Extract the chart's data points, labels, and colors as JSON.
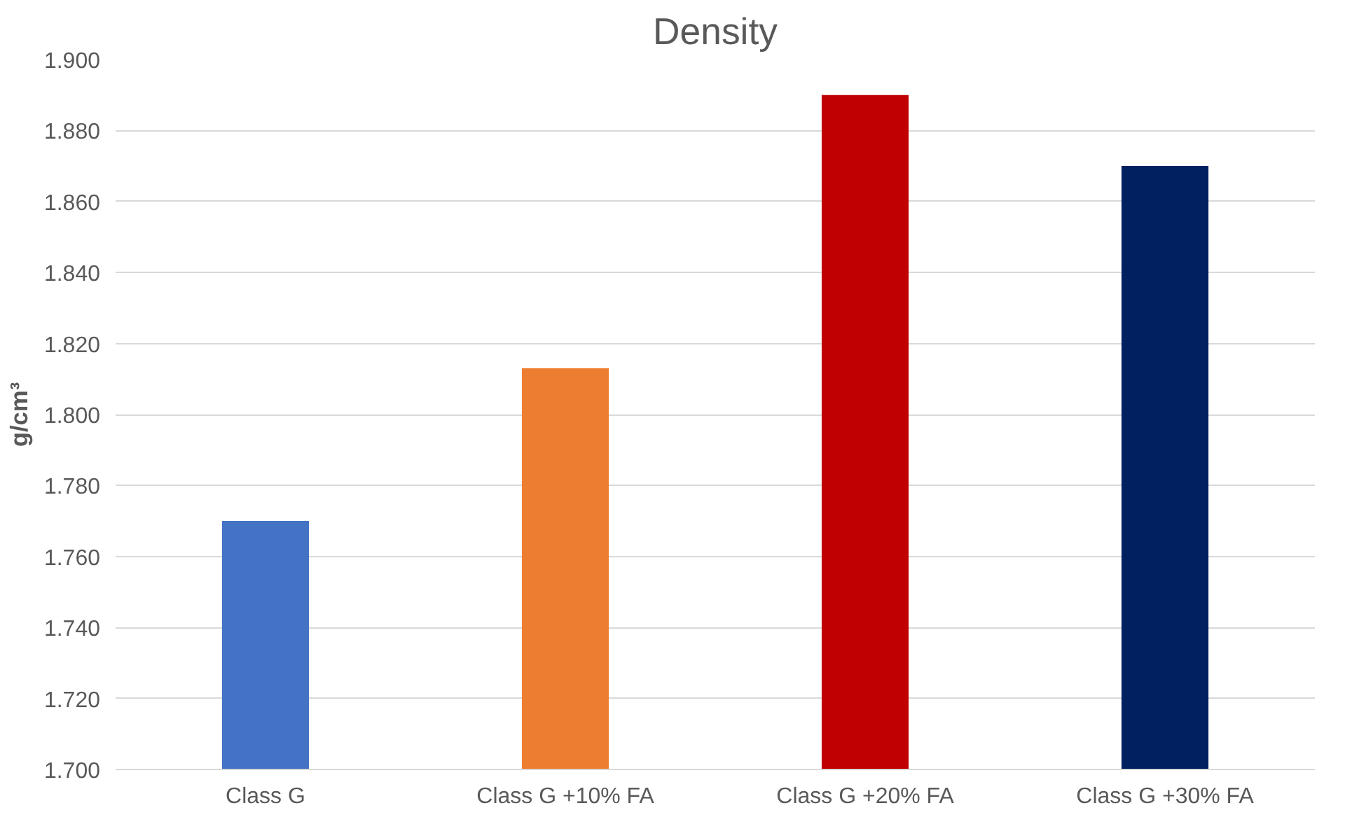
{
  "chart_data": {
    "type": "bar",
    "title": "Density",
    "ylabel": "g/cm³",
    "categories": [
      "Class G",
      "Class G +10% FA",
      "Class G +20% FA",
      "Class G +30% FA"
    ],
    "values": [
      1.77,
      1.813,
      1.89,
      1.87
    ],
    "colors": [
      "#4472c4",
      "#ed7d31",
      "#c00000",
      "#002060"
    ],
    "ylim": [
      1.7,
      1.9
    ],
    "yticks": [
      {
        "value": 1.7,
        "label": "1.700"
      },
      {
        "value": 1.72,
        "label": "1.720"
      },
      {
        "value": 1.74,
        "label": "1.740"
      },
      {
        "value": 1.76,
        "label": "1.760"
      },
      {
        "value": 1.78,
        "label": "1.780"
      },
      {
        "value": 1.8,
        "label": "1.800"
      },
      {
        "value": 1.82,
        "label": "1.820"
      },
      {
        "value": 1.84,
        "label": "1.840"
      },
      {
        "value": 1.86,
        "label": "1.860"
      },
      {
        "value": 1.88,
        "label": "1.880"
      },
      {
        "value": 1.9,
        "label": "1.900"
      }
    ],
    "grid": "y"
  }
}
